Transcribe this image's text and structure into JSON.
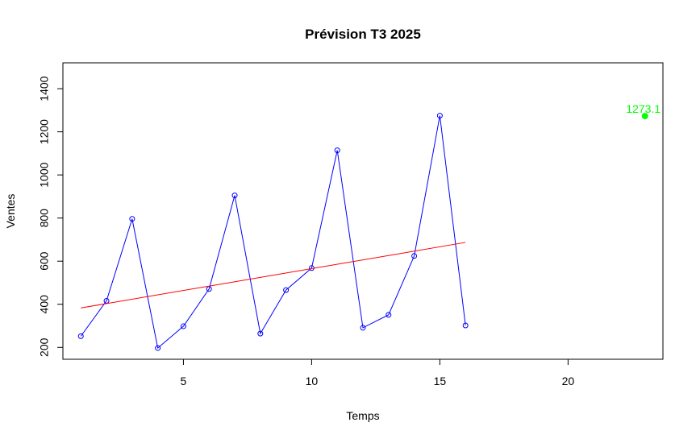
{
  "chart_data": {
    "type": "line",
    "title": "Prévision T3 2025",
    "xlabel": "Temps",
    "ylabel": "Ventes",
    "xlim": [
      0.3,
      23.7
    ],
    "ylim": [
      145,
      1520
    ],
    "xticks": [
      5,
      10,
      15,
      20
    ],
    "yticks": [
      200,
      400,
      600,
      800,
      1000,
      1200,
      1400
    ],
    "grid": false,
    "series": [
      {
        "type": "line+points",
        "color": "#0000ff",
        "x": [
          1,
          2,
          3,
          4,
          5,
          6,
          7,
          8,
          9,
          10,
          11,
          12,
          13,
          14,
          15,
          16
        ],
        "y": [
          252,
          416,
          796,
          197,
          298,
          471,
          905,
          264,
          466,
          568,
          1114,
          291,
          351,
          624,
          1275,
          302
        ]
      },
      {
        "type": "trend",
        "color": "#ff0000",
        "x": [
          1,
          16
        ],
        "y": [
          383,
          687
        ]
      },
      {
        "type": "forecast-point",
        "color": "#00ff00",
        "x": [
          23
        ],
        "y": [
          1273.1
        ],
        "label": "1273.1"
      }
    ]
  }
}
